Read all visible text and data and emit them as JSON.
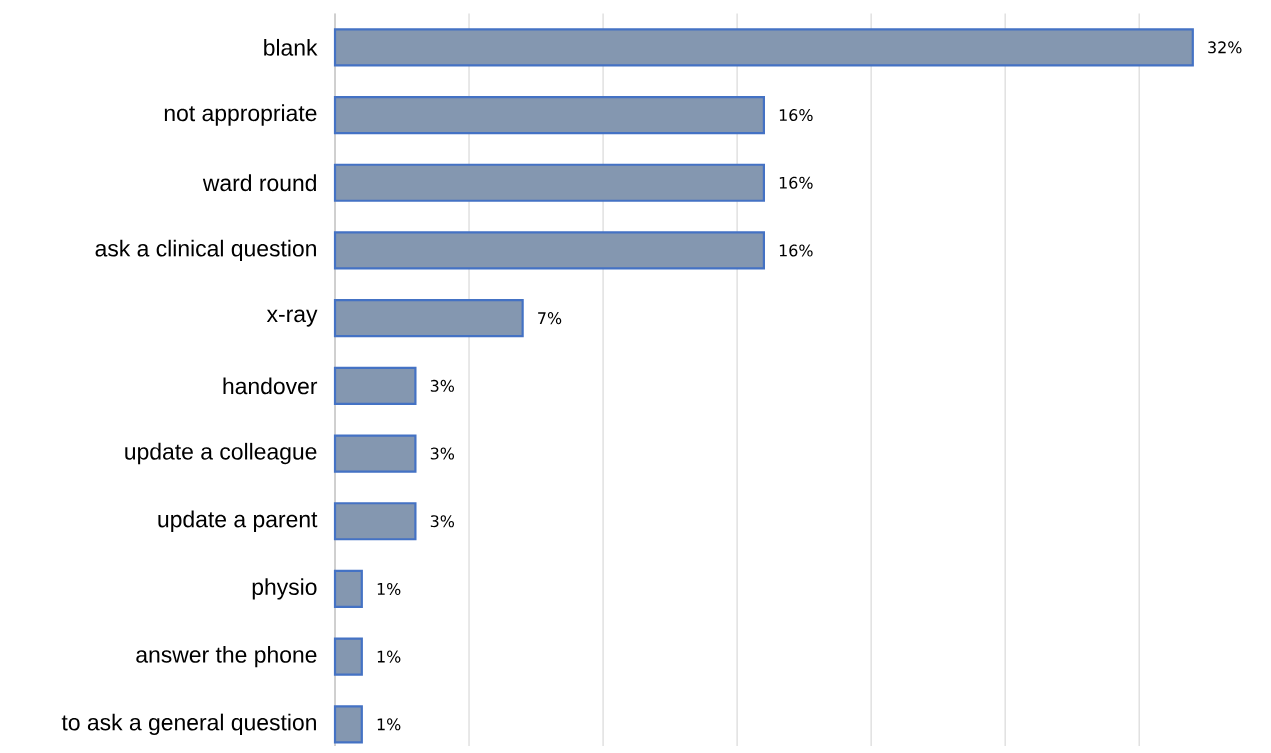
{
  "chart_data": {
    "type": "bar",
    "orientation": "horizontal",
    "categories": [
      "blank",
      "not appropriate",
      "ward round",
      "ask a clinical question",
      "x-ray",
      "handover",
      "update a colleague",
      "update a parent",
      "physio",
      "answer the phone",
      "to ask a general question"
    ],
    "values": [
      32,
      16,
      16,
      16,
      7,
      3,
      3,
      3,
      1,
      1,
      1
    ],
    "value_labels": [
      "32%",
      "16%",
      "16%",
      "16%",
      "7%",
      "3%",
      "3%",
      "3%",
      "1%",
      "1%",
      "1%"
    ],
    "color": "#8497b0",
    "grid": "x",
    "tick_labels": "y"
  }
}
